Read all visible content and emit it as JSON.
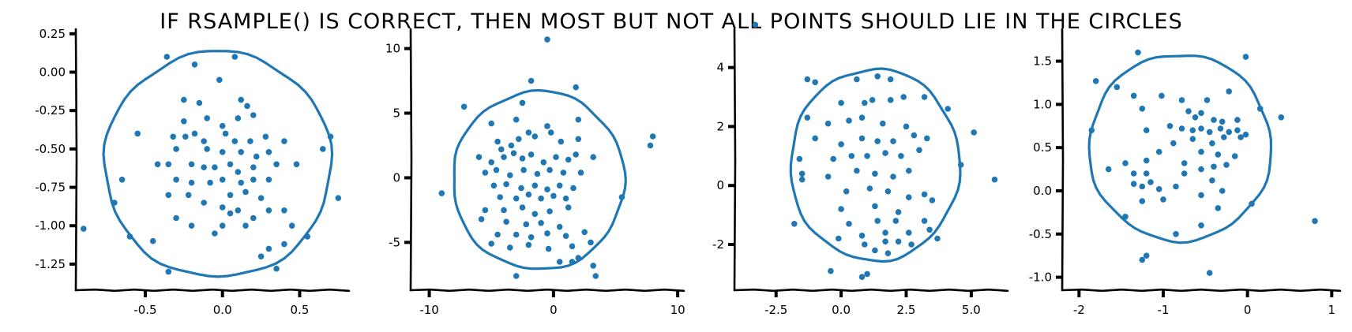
{
  "figure": {
    "title": "IF RSAMPLE() IS CORRECT, THEN MOST BUT NOT ALL POINTS SHOULD LIE IN THE CIRCLES",
    "colors": {
      "series": "#1f77b4",
      "axes": "#000000",
      "background": "#ffffff"
    }
  },
  "chart_data": [
    {
      "type": "scatter",
      "title": "",
      "xlabel": "",
      "ylabel": "",
      "xlim": [
        -0.95,
        0.82
      ],
      "ylim": [
        -1.42,
        0.28
      ],
      "xticks": [
        -0.5,
        0.0,
        0.5
      ],
      "xtick_labels": [
        "-0.5",
        "0.0",
        "0.5"
      ],
      "yticks": [
        0.25,
        0.0,
        -0.25,
        -0.5,
        -0.75,
        -1.0,
        -1.25
      ],
      "ytick_labels": [
        "0.25",
        "0.00",
        "-0.25",
        "-0.50",
        "-0.75",
        "-1.00",
        "-1.25"
      ],
      "circle": {
        "cx": -0.03,
        "cy": -0.6,
        "r": 0.735
      },
      "points": [
        [
          -0.36,
          0.1
        ],
        [
          -0.18,
          0.05
        ],
        [
          0.08,
          0.1
        ],
        [
          -0.02,
          -0.05
        ],
        [
          -0.25,
          -0.18
        ],
        [
          -0.15,
          -0.2
        ],
        [
          0.12,
          -0.18
        ],
        [
          0.16,
          -0.22
        ],
        [
          -0.25,
          -0.32
        ],
        [
          -0.1,
          -0.3
        ],
        [
          0.0,
          -0.35
        ],
        [
          0.1,
          -0.3
        ],
        [
          0.2,
          -0.28
        ],
        [
          -0.55,
          -0.4
        ],
        [
          -0.32,
          -0.42
        ],
        [
          -0.24,
          -0.42
        ],
        [
          -0.18,
          -0.4
        ],
        [
          -0.12,
          -0.45
        ],
        [
          0.02,
          -0.4
        ],
        [
          0.08,
          -0.45
        ],
        [
          0.18,
          -0.45
        ],
        [
          0.28,
          -0.42
        ],
        [
          0.4,
          -0.45
        ],
        [
          0.7,
          -0.42
        ],
        [
          -0.3,
          -0.5
        ],
        [
          -0.1,
          -0.5
        ],
        [
          0.0,
          -0.52
        ],
        [
          0.12,
          -0.52
        ],
        [
          0.22,
          -0.55
        ],
        [
          0.3,
          -0.52
        ],
        [
          0.65,
          -0.5
        ],
        [
          -0.42,
          -0.6
        ],
        [
          -0.35,
          -0.6
        ],
        [
          -0.2,
          -0.6
        ],
        [
          -0.12,
          -0.62
        ],
        [
          -0.05,
          -0.62
        ],
        [
          0.05,
          -0.6
        ],
        [
          0.1,
          -0.65
        ],
        [
          0.2,
          -0.62
        ],
        [
          0.35,
          -0.6
        ],
        [
          0.48,
          -0.6
        ],
        [
          -0.65,
          -0.7
        ],
        [
          -0.3,
          -0.7
        ],
        [
          -0.2,
          -0.72
        ],
        [
          -0.08,
          -0.72
        ],
        [
          0.0,
          -0.7
        ],
        [
          0.12,
          -0.72
        ],
        [
          0.2,
          -0.7
        ],
        [
          0.3,
          -0.7
        ],
        [
          -0.35,
          -0.8
        ],
        [
          -0.22,
          -0.8
        ],
        [
          0.05,
          -0.8
        ],
        [
          0.15,
          -0.78
        ],
        [
          0.25,
          -0.82
        ],
        [
          -0.7,
          -0.85
        ],
        [
          -0.12,
          -0.85
        ],
        [
          0.0,
          -0.88
        ],
        [
          0.1,
          -0.9
        ],
        [
          0.3,
          -0.9
        ],
        [
          0.4,
          -0.9
        ],
        [
          -0.3,
          -0.95
        ],
        [
          0.05,
          -0.92
        ],
        [
          0.2,
          -0.95
        ],
        [
          0.75,
          -0.82
        ],
        [
          -0.2,
          -1.0
        ],
        [
          0.0,
          -1.0
        ],
        [
          0.15,
          -1.0
        ],
        [
          0.45,
          -1.0
        ],
        [
          -0.05,
          -1.05
        ],
        [
          -0.6,
          -1.07
        ],
        [
          0.55,
          -1.07
        ],
        [
          -0.45,
          -1.1
        ],
        [
          0.3,
          -1.15
        ],
        [
          0.4,
          -1.12
        ],
        [
          0.25,
          -1.2
        ],
        [
          -0.35,
          -1.3
        ],
        [
          0.35,
          -1.28
        ],
        [
          -0.9,
          -1.02
        ]
      ]
    },
    {
      "type": "scatter",
      "title": "",
      "xlabel": "",
      "ylabel": "",
      "xlim": [
        -11.5,
        10.5
      ],
      "ylim": [
        -8.7,
        11.5
      ],
      "xticks": [
        -10,
        0,
        10
      ],
      "xtick_labels": [
        "-10",
        "0",
        "10"
      ],
      "yticks": [
        10,
        5,
        0,
        -5
      ],
      "ytick_labels": [
        "10",
        "5",
        "0",
        "-5"
      ],
      "circle": {
        "cx": -1.2,
        "cy": -0.2,
        "r": 6.9
      },
      "points": [
        [
          -0.5,
          10.7
        ],
        [
          -1.8,
          7.5
        ],
        [
          1.8,
          7.0
        ],
        [
          -7.2,
          5.5
        ],
        [
          -2.5,
          5.8
        ],
        [
          -5,
          4.2
        ],
        [
          -3,
          4.5
        ],
        [
          -0.5,
          4.0
        ],
        [
          2.0,
          4.5
        ],
        [
          -2.0,
          3.5
        ],
        [
          -4.5,
          2.8
        ],
        [
          -4.2,
          2.2
        ],
        [
          -3.4,
          2.5
        ],
        [
          -2.8,
          3.0
        ],
        [
          -1.5,
          3.2
        ],
        [
          -0.2,
          3.5
        ],
        [
          0.6,
          2.8
        ],
        [
          2.0,
          3.0
        ],
        [
          8.0,
          3.2
        ],
        [
          7.8,
          2.5
        ],
        [
          -6.0,
          1.6
        ],
        [
          -5.0,
          1.2
        ],
        [
          -4.0,
          1.6
        ],
        [
          -3.2,
          1.9
        ],
        [
          -2.5,
          1.5
        ],
        [
          -1.8,
          1.8
        ],
        [
          -0.8,
          1.2
        ],
        [
          0.2,
          1.6
        ],
        [
          1.2,
          1.4
        ],
        [
          1.8,
          1.8
        ],
        [
          3.2,
          1.6
        ],
        [
          -5.5,
          0.4
        ],
        [
          -4.6,
          0.6
        ],
        [
          -3.5,
          0.2
        ],
        [
          -2.4,
          0.6
        ],
        [
          -1.3,
          0.3
        ],
        [
          -0.3,
          0.6
        ],
        [
          0.8,
          0.4
        ],
        [
          2.2,
          0.4
        ],
        [
          -4.8,
          -0.6
        ],
        [
          -3.8,
          -0.5
        ],
        [
          -2.6,
          -0.8
        ],
        [
          -1.5,
          -0.6
        ],
        [
          -0.5,
          -0.9
        ],
        [
          0.5,
          -0.6
        ],
        [
          1.6,
          -0.8
        ],
        [
          -9.0,
          -1.2
        ],
        [
          -4.3,
          -1.5
        ],
        [
          -3.0,
          -1.6
        ],
        [
          -2.0,
          -1.3
        ],
        [
          -1.0,
          -1.6
        ],
        [
          0.0,
          -1.4
        ],
        [
          1.0,
          -1.6
        ],
        [
          -5.5,
          -2.5
        ],
        [
          -4.0,
          -2.5
        ],
        [
          -2.5,
          -2.3
        ],
        [
          -1.5,
          -2.8
        ],
        [
          -0.3,
          -2.6
        ],
        [
          1.2,
          -2.3
        ],
        [
          -3.8,
          -3.4
        ],
        [
          -2.2,
          -3.6
        ],
        [
          -1.0,
          -3.5
        ],
        [
          0.5,
          -3.8
        ],
        [
          -4.5,
          -4.4
        ],
        [
          -3.0,
          -4.4
        ],
        [
          -1.8,
          -4.6
        ],
        [
          -0.5,
          -4.3
        ],
        [
          1.0,
          -4.5
        ],
        [
          2.5,
          -4.2
        ],
        [
          -5.0,
          -5.1
        ],
        [
          -3.5,
          -5.4
        ],
        [
          -2.0,
          -5.2
        ],
        [
          -0.4,
          -5.5
        ],
        [
          1.5,
          -5.3
        ],
        [
          3.0,
          -5.0
        ],
        [
          0.5,
          -6.5
        ],
        [
          1.5,
          -6.5
        ],
        [
          2.0,
          -6.2
        ],
        [
          3.2,
          -6.8
        ],
        [
          3.4,
          -7.6
        ],
        [
          -3.0,
          -7.6
        ],
        [
          -5.8,
          -3.2
        ],
        [
          5.5,
          -1.5
        ]
      ]
    },
    {
      "type": "scatter",
      "title": "",
      "xlabel": "",
      "ylabel": "",
      "xlim": [
        -4.1,
        6.4
      ],
      "ylim": [
        -3.55,
        5.3
      ],
      "xticks": [
        -2.5,
        0.0,
        2.5,
        5.0
      ],
      "xtick_labels": [
        "-2.5",
        "0.0",
        "2.5",
        "5.0"
      ],
      "yticks": [
        4,
        2,
        0,
        -2
      ],
      "ytick_labels": [
        "4",
        "2",
        "0",
        "-2"
      ],
      "circle": {
        "cx": 1.3,
        "cy": 0.7,
        "r": 3.25
      },
      "points": [
        [
          -3.3,
          5.45
        ],
        [
          -1.3,
          3.6
        ],
        [
          -1.0,
          3.5
        ],
        [
          0.6,
          3.6
        ],
        [
          1.4,
          3.7
        ],
        [
          1.9,
          3.6
        ],
        [
          0.0,
          2.8
        ],
        [
          0.9,
          2.8
        ],
        [
          1.2,
          2.9
        ],
        [
          1.9,
          2.9
        ],
        [
          2.4,
          3.0
        ],
        [
          3.2,
          3.0
        ],
        [
          4.1,
          2.6
        ],
        [
          -1.3,
          2.3
        ],
        [
          -0.5,
          2.1
        ],
        [
          0.3,
          2.2
        ],
        [
          0.8,
          2.3
        ],
        [
          1.6,
          2.1
        ],
        [
          2.5,
          2.0
        ],
        [
          -1.0,
          1.6
        ],
        [
          0.0,
          1.4
        ],
        [
          0.8,
          1.6
        ],
        [
          1.4,
          1.5
        ],
        [
          2.0,
          1.5
        ],
        [
          2.8,
          1.7
        ],
        [
          3.3,
          1.6
        ],
        [
          5.1,
          1.8
        ],
        [
          -1.6,
          0.9
        ],
        [
          -0.3,
          0.9
        ],
        [
          0.4,
          1.0
        ],
        [
          1.0,
          1.0
        ],
        [
          1.7,
          1.1
        ],
        [
          2.3,
          1.0
        ],
        [
          3.0,
          1.2
        ],
        [
          -1.5,
          0.4
        ],
        [
          -0.5,
          0.3
        ],
        [
          0.6,
          0.5
        ],
        [
          1.3,
          0.4
        ],
        [
          2.0,
          0.3
        ],
        [
          2.6,
          0.5
        ],
        [
          4.6,
          0.7
        ],
        [
          5.9,
          0.2
        ],
        [
          -1.5,
          0.2
        ],
        [
          0.2,
          -0.2
        ],
        [
          1.1,
          -0.1
        ],
        [
          1.8,
          -0.2
        ],
        [
          2.6,
          -0.4
        ],
        [
          3.2,
          -0.3
        ],
        [
          0.0,
          -0.8
        ],
        [
          1.3,
          -0.7
        ],
        [
          2.2,
          -0.9
        ],
        [
          3.5,
          -0.5
        ],
        [
          0.3,
          -1.3
        ],
        [
          1.4,
          -1.2
        ],
        [
          2.1,
          -1.2
        ],
        [
          3.2,
          -1.2
        ],
        [
          -1.8,
          -1.3
        ],
        [
          1.7,
          -1.6
        ],
        [
          2.6,
          -1.6
        ],
        [
          -0.1,
          -1.8
        ],
        [
          0.8,
          -1.7
        ],
        [
          1.7,
          -1.9
        ],
        [
          0.9,
          -2.0
        ],
        [
          1.3,
          -2.2
        ],
        [
          1.8,
          -2.3
        ],
        [
          2.7,
          -2.0
        ],
        [
          3.7,
          -1.8
        ],
        [
          -0.4,
          -2.9
        ],
        [
          0.8,
          -3.1
        ],
        [
          1.0,
          -3.0
        ],
        [
          2.2,
          -1.9
        ],
        [
          3.4,
          -1.5
        ]
      ]
    },
    {
      "type": "scatter",
      "title": "",
      "xlabel": "",
      "ylabel": "",
      "xlim": [
        -2.2,
        1.1
      ],
      "ylim": [
        -1.15,
        1.87
      ],
      "xticks": [
        -2,
        -1,
        0,
        1
      ],
      "xtick_labels": [
        "-2",
        "-1",
        "0",
        "1"
      ],
      "yticks": [
        1.5,
        1.0,
        0.5,
        0.0,
        -0.5,
        -1.0
      ],
      "ytick_labels": [
        "1.5",
        "1.0",
        "0.5",
        "0.0",
        "-0.5",
        "-1.0"
      ],
      "circle": {
        "cx": -0.8,
        "cy": 0.5,
        "r": 1.08
      },
      "points": [
        [
          -1.3,
          1.6
        ],
        [
          -1.8,
          1.27
        ],
        [
          -0.02,
          1.55
        ],
        [
          -1.55,
          1.2
        ],
        [
          -1.35,
          1.1
        ],
        [
          -1.02,
          1.1
        ],
        [
          -0.78,
          1.05
        ],
        [
          -0.48,
          1.05
        ],
        [
          -0.22,
          1.15
        ],
        [
          -1.25,
          0.95
        ],
        [
          -0.7,
          0.92
        ],
        [
          -0.62,
          0.85
        ],
        [
          -0.55,
          0.9
        ],
        [
          -0.4,
          0.82
        ],
        [
          -0.3,
          0.8
        ],
        [
          -0.12,
          0.82
        ],
        [
          0.15,
          0.95
        ],
        [
          -1.2,
          0.7
        ],
        [
          -0.92,
          0.75
        ],
        [
          -0.78,
          0.72
        ],
        [
          -0.65,
          0.7
        ],
        [
          -0.55,
          0.72
        ],
        [
          -0.45,
          0.68
        ],
        [
          -0.32,
          0.72
        ],
        [
          -0.22,
          0.68
        ],
        [
          -0.12,
          0.7
        ],
        [
          -0.08,
          0.62
        ],
        [
          -0.02,
          0.65
        ],
        [
          -0.28,
          0.62
        ],
        [
          -0.42,
          0.55
        ],
        [
          -0.65,
          0.6
        ],
        [
          -0.88,
          0.55
        ],
        [
          -1.05,
          0.45
        ],
        [
          -0.55,
          0.45
        ],
        [
          -0.35,
          0.42
        ],
        [
          -0.15,
          0.4
        ],
        [
          -1.2,
          0.35
        ],
        [
          -1.45,
          0.32
        ],
        [
          -0.75,
          0.32
        ],
        [
          -0.4,
          0.28
        ],
        [
          -0.25,
          0.3
        ],
        [
          -0.55,
          0.25
        ],
        [
          -1.65,
          0.25
        ],
        [
          -1.35,
          0.2
        ],
        [
          -1.2,
          0.2
        ],
        [
          -0.75,
          0.2
        ],
        [
          -0.42,
          0.12
        ],
        [
          -1.35,
          0.08
        ],
        [
          -1.15,
          0.1
        ],
        [
          -1.25,
          0.05
        ],
        [
          -1.05,
          0.02
        ],
        [
          -0.85,
          0.05
        ],
        [
          -0.3,
          0.0
        ],
        [
          -0.55,
          -0.05
        ],
        [
          -1.25,
          -0.12
        ],
        [
          -1.0,
          -0.1
        ],
        [
          -0.35,
          -0.2
        ],
        [
          0.05,
          -0.15
        ],
        [
          -1.45,
          -0.3
        ],
        [
          -0.55,
          -0.4
        ],
        [
          -0.85,
          -0.5
        ],
        [
          -1.2,
          -0.75
        ],
        [
          -1.25,
          -0.8
        ],
        [
          -0.45,
          -0.95
        ],
        [
          0.8,
          -0.35
        ],
        [
          -1.85,
          0.7
        ],
        [
          0.4,
          0.85
        ]
      ]
    }
  ]
}
